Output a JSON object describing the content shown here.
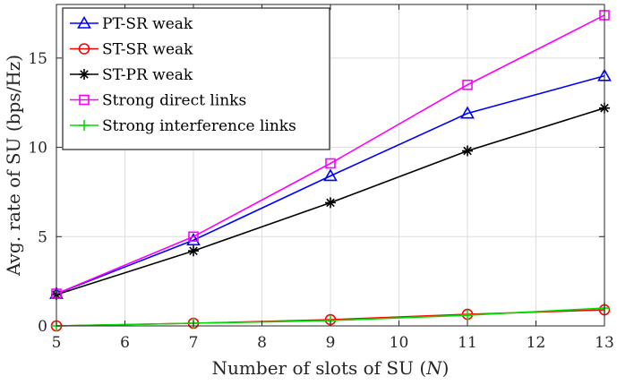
{
  "chart_data": {
    "type": "line",
    "xlabel": "Number of slots of SU (N)",
    "xlabel_parts": {
      "before": "Number of slots of SU (",
      "var": "N",
      "after": ")"
    },
    "ylabel": "Avg. rate of SU (bps/Hz)",
    "xlim": [
      5,
      13
    ],
    "ylim": [
      0,
      18
    ],
    "xticks": [
      5,
      6,
      7,
      8,
      9,
      10,
      11,
      12,
      13
    ],
    "yticks": [
      0,
      5,
      10,
      15
    ],
    "grid": true,
    "legend_position": "top-left",
    "x": [
      5,
      7,
      9,
      11,
      13
    ],
    "series": [
      {
        "name": "PT-SR weak",
        "color": "#0000ff",
        "marker": "triangle",
        "values": [
          1.8,
          4.8,
          8.4,
          11.9,
          14.0
        ]
      },
      {
        "name": "ST-SR weak",
        "color": "#ff0000",
        "marker": "circle",
        "values": [
          0.0,
          0.15,
          0.35,
          0.65,
          0.9
        ]
      },
      {
        "name": "ST-PR weak",
        "color": "#000000",
        "marker": "asterisk",
        "values": [
          1.75,
          4.2,
          6.9,
          9.8,
          12.2
        ]
      },
      {
        "name": "Strong direct links",
        "color": "#ff00ff",
        "marker": "square",
        "values": [
          1.8,
          5.0,
          9.1,
          13.5,
          17.4
        ]
      },
      {
        "name": "Strong interference links",
        "color": "#00dd00",
        "marker": "plus",
        "values": [
          0.0,
          0.15,
          0.3,
          0.6,
          1.0
        ]
      }
    ]
  }
}
